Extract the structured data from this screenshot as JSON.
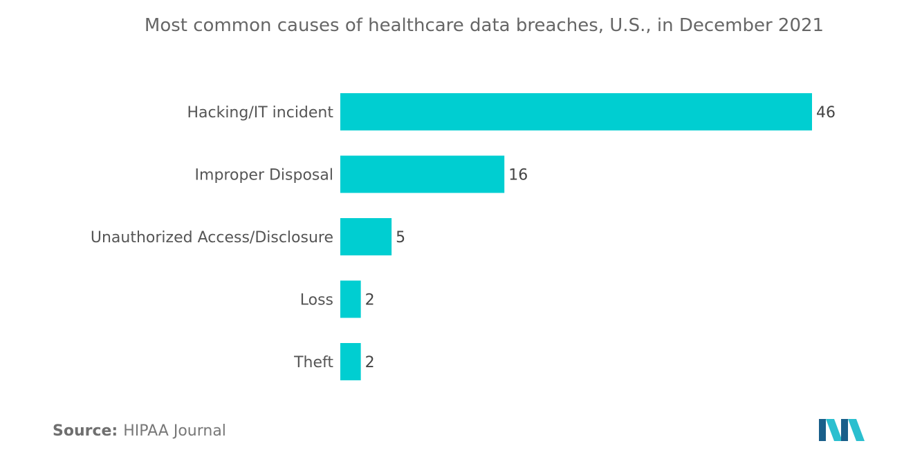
{
  "chart_data": {
    "type": "bar",
    "orientation": "horizontal",
    "title": "Most common causes of healthcare data breaches, U.S., in December 2021",
    "categories": [
      "Hacking/IT incident",
      "Improper Disposal",
      "Unauthorized Access/Disclosure",
      "Loss",
      "Theft"
    ],
    "values": [
      46,
      16,
      5,
      2,
      2
    ],
    "xlim": [
      0,
      46
    ],
    "grid": false,
    "legend": "none",
    "bar_color": "#00CED1"
  },
  "source": {
    "label": "Source:",
    "text": "HIPAA Journal"
  },
  "logo": {
    "icon": "mordor-intelligence-logo-icon",
    "colors": [
      "#1a5f8a",
      "#2bbfcf"
    ]
  }
}
